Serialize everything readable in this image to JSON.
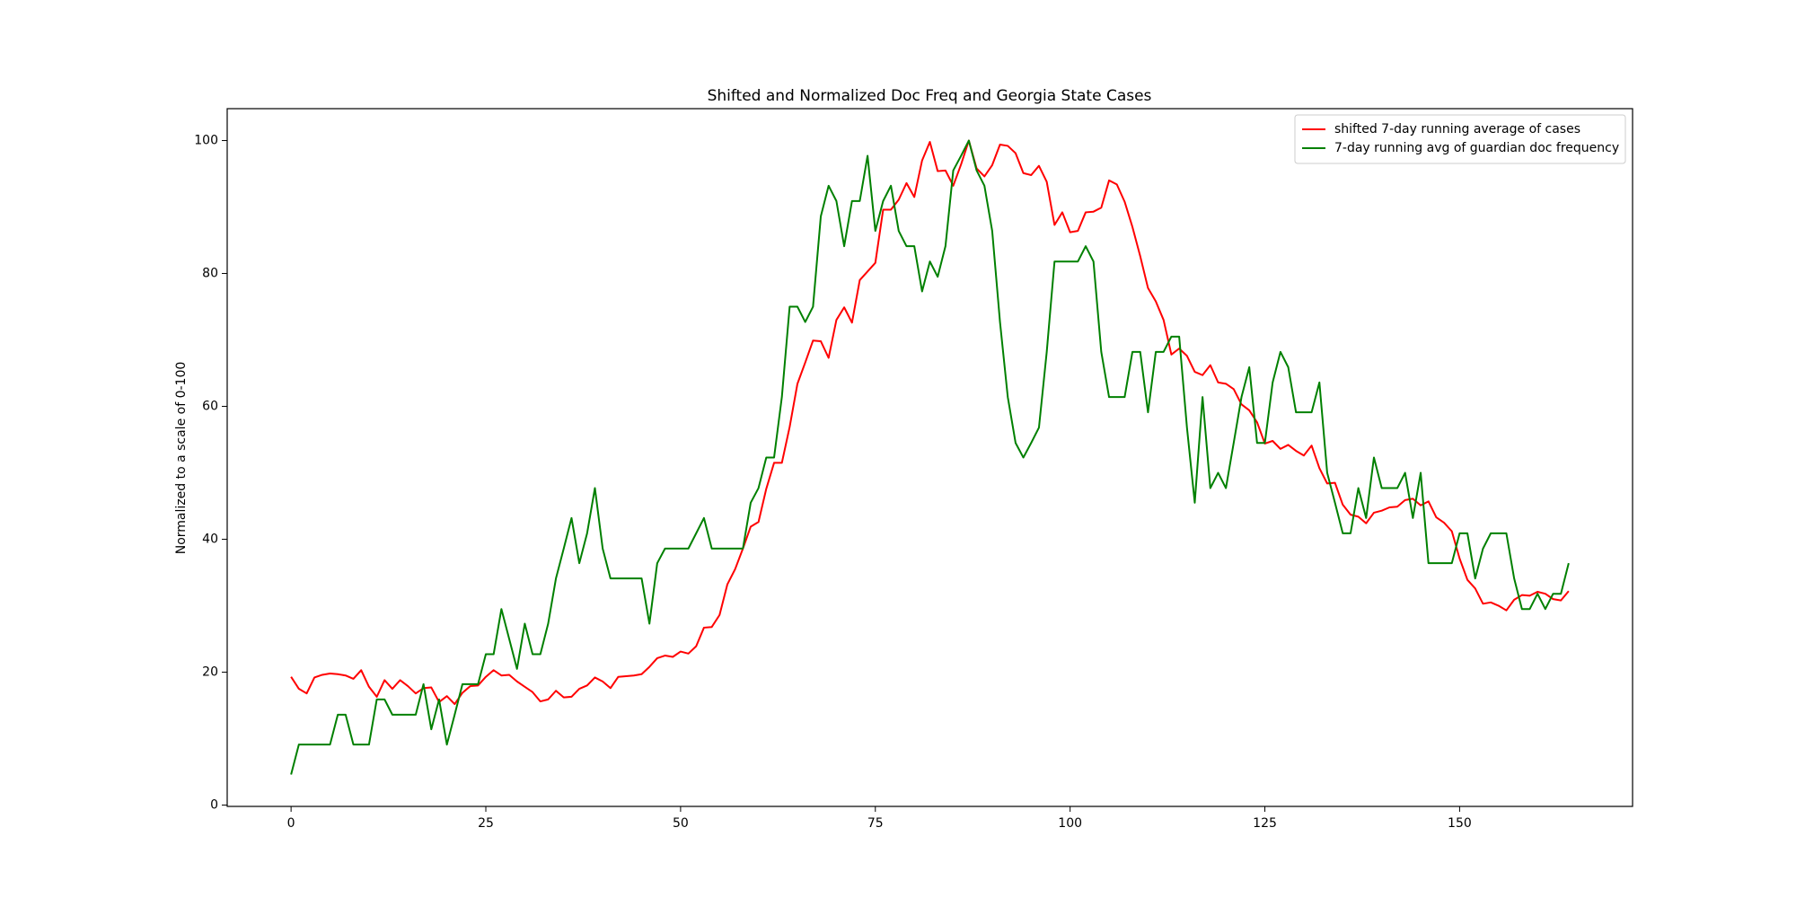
{
  "chart_data": {
    "type": "line",
    "title": "Shifted and Normalized Doc Freq and Georgia State Cases",
    "y_label": "Normalized to a scale of 0-100",
    "x": [
      0,
      1,
      2,
      3,
      4,
      5,
      6,
      7,
      8,
      9,
      10,
      11,
      12,
      13,
      14,
      15,
      16,
      17,
      18,
      19,
      20,
      21,
      22,
      23,
      24,
      25,
      26,
      27,
      28,
      29,
      30,
      31,
      32,
      33,
      34,
      35,
      36,
      37,
      38,
      39,
      40,
      41,
      42,
      43,
      44,
      45,
      46,
      47,
      48,
      49,
      50,
      51,
      52,
      53,
      54,
      55,
      56,
      57,
      58,
      59,
      60,
      61,
      62,
      63,
      64,
      65,
      66,
      67,
      68,
      69,
      70,
      71,
      72,
      73,
      74,
      75,
      76,
      77,
      78,
      79,
      80,
      81,
      82,
      83,
      84,
      85,
      86,
      87,
      88,
      89,
      90,
      91,
      92,
      93,
      94,
      95,
      96,
      97,
      98,
      99,
      100,
      101,
      102,
      103,
      104,
      105,
      106,
      107,
      108,
      109,
      110,
      111,
      112,
      113,
      114,
      115,
      116,
      117,
      118,
      119,
      120,
      121,
      122,
      123,
      124,
      125,
      126,
      127,
      128,
      129,
      130,
      131,
      132,
      133,
      134,
      135,
      136,
      137,
      138,
      139,
      140,
      141,
      142,
      143,
      144,
      145,
      146,
      147,
      148,
      149,
      150,
      151,
      152,
      153,
      154,
      155,
      156,
      157,
      158,
      159,
      160,
      161,
      162,
      163,
      164
    ],
    "series": [
      {
        "name": "shifted 7-day running average of cases",
        "color": "#ff0000",
        "values": [
          19.3,
          17.5,
          16.8,
          19.2,
          19.6,
          19.8,
          19.7,
          19.5,
          19.0,
          20.3,
          17.8,
          16.3,
          18.8,
          17.5,
          18.8,
          17.9,
          16.8,
          17.6,
          17.7,
          15.5,
          16.4,
          15.2,
          16.9,
          17.9,
          18.0,
          19.3,
          20.3,
          19.5,
          19.6,
          18.6,
          17.8,
          17.0,
          15.6,
          15.9,
          17.2,
          16.2,
          16.3,
          17.5,
          18.0,
          19.2,
          18.6,
          17.6,
          19.3,
          19.4,
          19.5,
          19.7,
          20.8,
          22.1,
          22.5,
          22.3,
          23.1,
          22.8,
          23.9,
          26.7,
          26.8,
          28.6,
          33.2,
          35.5,
          38.6,
          41.9,
          42.6,
          47.6,
          51.5,
          51.5,
          56.9,
          63.4,
          66.6,
          69.9,
          69.8,
          67.3,
          73.0,
          74.9,
          72.6,
          79.0,
          80.3,
          81.6,
          89.6,
          89.6,
          91.1,
          93.6,
          91.5,
          97.0,
          99.8,
          95.4,
          95.5,
          93.2,
          96.4,
          100,
          95.8,
          94.6,
          96.3,
          99.4,
          99.2,
          98.1,
          95.1,
          94.8,
          96.2,
          93.8,
          87.3,
          89.2,
          86.2,
          86.4,
          89.2,
          89.3,
          89.9,
          94.0,
          93.4,
          90.8,
          87.0,
          82.6,
          77.8,
          75.8,
          73.0,
          67.8,
          68.7,
          67.6,
          65.2,
          64.7,
          66.2,
          63.6,
          63.4,
          62.6,
          60.3,
          59.4,
          57.6,
          54.4,
          54.8,
          53.6,
          54.2,
          53.3,
          52.6,
          54.1,
          50.7,
          48.4,
          48.5,
          45.2,
          43.7,
          43.4,
          42.4,
          44.0,
          44.3,
          44.8,
          44.9,
          45.9,
          46.1,
          45.1,
          45.7,
          43.3,
          42.5,
          41.2,
          37.1,
          33.9,
          32.6,
          30.3,
          30.5,
          30.0,
          29.3,
          30.9,
          31.6,
          31.5,
          32.1,
          31.8,
          31.0,
          30.8,
          32.2
        ]
      },
      {
        "name": "7-day running avg of guardian doc frequency",
        "color": "#008000",
        "values": [
          4.6,
          9.1,
          9.1,
          9.1,
          9.1,
          9.1,
          13.6,
          13.6,
          9.1,
          9.1,
          9.1,
          15.9,
          15.9,
          13.6,
          13.6,
          13.6,
          13.6,
          18.2,
          11.4,
          15.9,
          9.1,
          13.6,
          18.2,
          18.2,
          18.2,
          22.7,
          22.7,
          29.5,
          25.0,
          20.5,
          27.3,
          22.7,
          22.7,
          27.3,
          34.1,
          38.6,
          43.2,
          36.4,
          40.9,
          47.7,
          38.6,
          34.1,
          34.1,
          34.1,
          34.1,
          34.1,
          27.3,
          36.4,
          38.6,
          38.6,
          38.6,
          38.6,
          40.9,
          43.2,
          38.6,
          38.6,
          38.6,
          38.6,
          38.6,
          45.5,
          47.7,
          52.3,
          52.3,
          61.4,
          75.0,
          75.0,
          72.7,
          75.0,
          88.6,
          93.2,
          90.9,
          84.1,
          90.9,
          90.9,
          97.7,
          86.4,
          90.9,
          93.2,
          86.4,
          84.1,
          84.1,
          77.3,
          81.8,
          79.5,
          84.1,
          95.5,
          97.7,
          100,
          95.5,
          93.2,
          86.4,
          72.7,
          61.4,
          54.5,
          52.3,
          54.5,
          56.8,
          68.2,
          81.8,
          81.8,
          81.8,
          81.8,
          84.1,
          81.8,
          68.2,
          61.4,
          61.4,
          61.4,
          68.2,
          68.2,
          59.1,
          68.2,
          68.2,
          70.5,
          70.5,
          56.8,
          45.5,
          61.4,
          47.7,
          50.0,
          47.7,
          54.5,
          61.4,
          65.9,
          54.5,
          54.5,
          63.6,
          68.2,
          65.9,
          59.1,
          59.1,
          59.1,
          63.6,
          50.0,
          45.5,
          40.9,
          40.9,
          47.7,
          43.2,
          52.3,
          47.7,
          47.7,
          47.7,
          50.0,
          43.2,
          50.0,
          36.4,
          36.4,
          36.4,
          36.4,
          40.9,
          40.9,
          34.1,
          38.6,
          40.9,
          40.9,
          40.9,
          34.1,
          29.5,
          29.5,
          31.8,
          29.5,
          31.8,
          31.8,
          36.4
        ]
      }
    ],
    "xlim": [
      -8.2,
      172.2
    ],
    "ylim": [
      -0.2,
      104.8
    ],
    "xticks": [
      0,
      25,
      50,
      75,
      100,
      125,
      150
    ],
    "yticks": [
      0,
      20,
      40,
      60,
      80,
      100
    ],
    "grid": false,
    "legend": "upper right"
  }
}
